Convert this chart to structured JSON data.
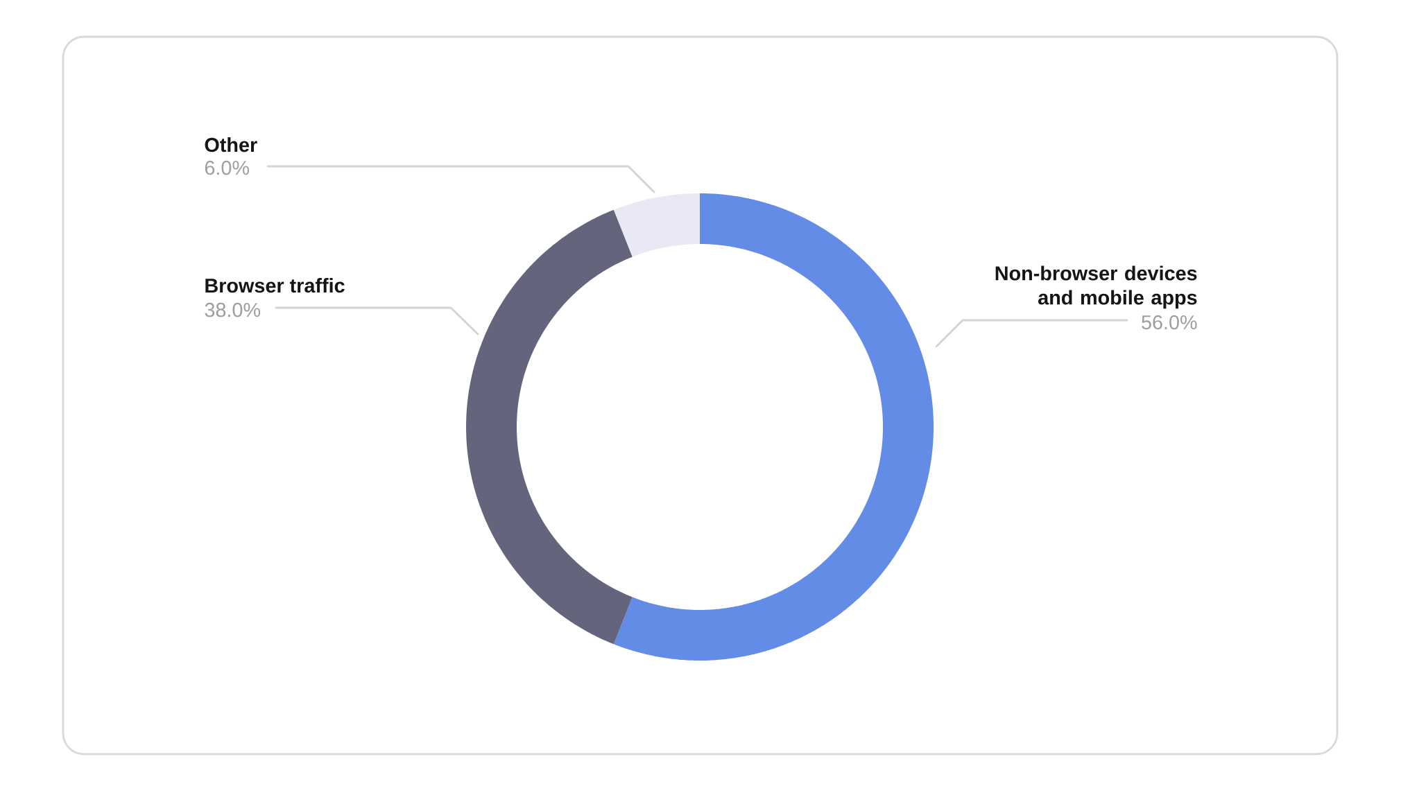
{
  "chart_data": {
    "type": "donut",
    "categories": [
      "Non-browser devices and mobile apps",
      "Browser traffic",
      "Other"
    ],
    "values": [
      56.0,
      38.0,
      6.0
    ],
    "colors": [
      "#628ce6",
      "#64657c",
      "#e8e9f5"
    ],
    "value_labels": [
      "56.0%",
      "38.0%",
      "6.0%"
    ]
  }
}
